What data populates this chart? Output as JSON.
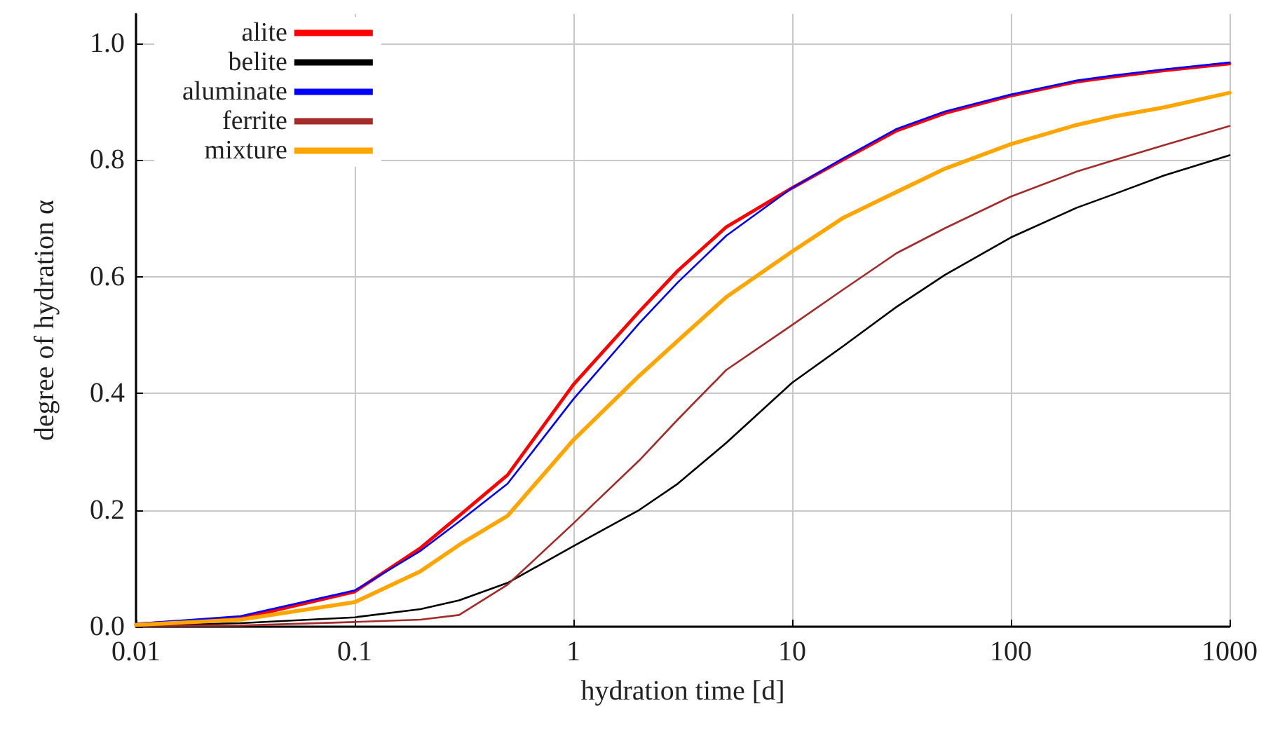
{
  "chart_data": {
    "type": "line",
    "xlabel": "hydration time [d]",
    "ylabel": "degree of hydration α",
    "log": "x",
    "grid": true,
    "legend": "top left",
    "marker": "none",
    "line_style": "solid",
    "xlim": [
      0.01,
      1000
    ],
    "xticks": [
      0.01,
      0.1,
      1,
      10,
      100,
      1000
    ],
    "ylim": [
      0,
      1.05
    ],
    "yticks": [
      {
        "value": 0,
        "label": "0.0"
      },
      0.2,
      0.4,
      0.6,
      0.8,
      {
        "value": 1,
        "label": "1.0"
      }
    ],
    "x": [
      0.01,
      0.03,
      0.1,
      0.2,
      0.3,
      0.5,
      1,
      2,
      3,
      5,
      10,
      17,
      30,
      50,
      100,
      200,
      300,
      500,
      1000
    ],
    "series": [
      {
        "name": "alite",
        "color": "#ff0000",
        "values": [
          0.004,
          0.014,
          0.06,
          0.135,
          0.19,
          0.26,
          0.415,
          0.54,
          0.61,
          0.685,
          0.752,
          0.8,
          0.85,
          0.88,
          0.91,
          0.934,
          0.943,
          0.953,
          0.965
        ]
      },
      {
        "name": "belite",
        "color": "#000000",
        "values": [
          0.002,
          0.006,
          0.016,
          0.03,
          0.045,
          0.075,
          0.138,
          0.2,
          0.245,
          0.315,
          0.418,
          0.48,
          0.548,
          0.603,
          0.667,
          0.718,
          0.742,
          0.773,
          0.808
        ]
      },
      {
        "name": "aluminate",
        "color": "#0000ff",
        "values": [
          0.005,
          0.018,
          0.062,
          0.13,
          0.18,
          0.245,
          0.39,
          0.52,
          0.59,
          0.67,
          0.752,
          0.802,
          0.853,
          0.883,
          0.912,
          0.936,
          0.945,
          0.955,
          0.967
        ]
      },
      {
        "name": "ferrite",
        "color": "#a52a2a",
        "values": [
          0.001,
          0.002,
          0.008,
          0.012,
          0.02,
          0.072,
          0.177,
          0.285,
          0.355,
          0.44,
          0.517,
          0.577,
          0.64,
          0.683,
          0.737,
          0.78,
          0.8,
          0.825,
          0.858
        ]
      },
      {
        "name": "mixture",
        "color": "#ffa500",
        "values": [
          0.003,
          0.012,
          0.042,
          0.095,
          0.14,
          0.19,
          0.32,
          0.43,
          0.49,
          0.565,
          0.643,
          0.7,
          0.745,
          0.785,
          0.827,
          0.86,
          0.875,
          0.89,
          0.915
        ]
      }
    ]
  }
}
